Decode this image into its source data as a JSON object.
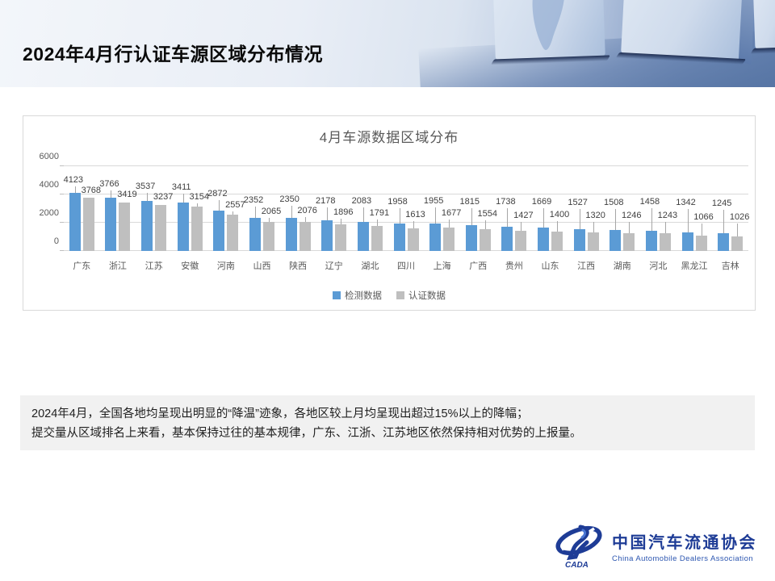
{
  "slide": {
    "title": "2024年4月行认证车源区域分布情况"
  },
  "chart_data": {
    "type": "bar",
    "title": "4月车源数据区域分布",
    "categories": [
      "广东",
      "浙江",
      "江苏",
      "安徽",
      "河南",
      "山西",
      "陕西",
      "辽宁",
      "湖北",
      "四川",
      "上海",
      "广西",
      "贵州",
      "山东",
      "江西",
      "湖南",
      "河北",
      "黑龙江",
      "吉林"
    ],
    "series": [
      {
        "name": "检测数据",
        "color": "#5B9BD5",
        "values": [
          4123,
          3766,
          3537,
          3411,
          2872,
          2352,
          2350,
          2178,
          2083,
          1958,
          1955,
          1815,
          1738,
          1669,
          1527,
          1508,
          1458,
          1342,
          1245
        ]
      },
      {
        "name": "认证数据",
        "color": "#BFBFBF",
        "values": [
          3768,
          3419,
          3237,
          3154,
          2557,
          2065,
          2076,
          1896,
          1791,
          1613,
          1677,
          1554,
          1427,
          1400,
          1320,
          1246,
          1243,
          1066,
          1026
        ]
      }
    ],
    "ylim": [
      0,
      6000
    ],
    "yticks": [
      0,
      2000,
      4000,
      6000
    ],
    "grid": true,
    "legend_position": "bottom",
    "data_labels": true
  },
  "commentary": {
    "line1": "2024年4月，全国各地均呈现出明显的“降温”迹象，各地区较上月均呈现出超过15%以上的降幅；",
    "line2": "提交量从区域排名上来看，基本保持过往的基本规律，广东、江浙、江苏地区依然保持相对优势的上报量。"
  },
  "footer_logo": {
    "emblem": "CADA",
    "name_zh": "中国汽车流通协会",
    "name_en": "China Automobile Dealers Association"
  },
  "colors": {
    "series1": "#5B9BD5",
    "series2": "#BFBFBF",
    "grid": "#D9D9D9",
    "axis_text": "#595959",
    "logo_blue": "#1E3C96"
  }
}
